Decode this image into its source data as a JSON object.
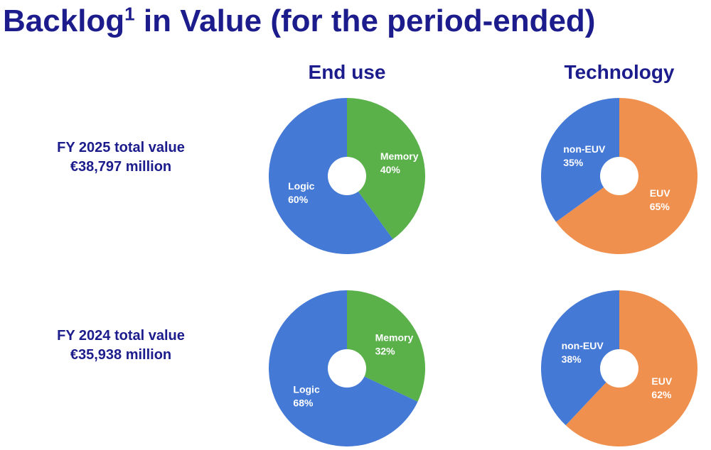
{
  "title": {
    "main": "Backlog",
    "superscript": "1",
    "rest": " in Value (for the period-ended)"
  },
  "column_headers": [
    "End use",
    "Technology"
  ],
  "rows": [
    {
      "period": "FY 2025 total value",
      "amount": "€38,797 million"
    },
    {
      "period": "FY 2024 total value",
      "amount": "€35,938 million"
    }
  ],
  "colors": {
    "logic": "#4479d6",
    "memory": "#5ab14a",
    "non_euv": "#4479d6",
    "euv": "#f0904e",
    "title": "#1c1c8c"
  },
  "chart_data": [
    {
      "type": "pie",
      "title": "End use",
      "period": "FY 2025",
      "slices": [
        {
          "label": "Memory",
          "value": 40,
          "display": "40%",
          "color": "#5ab14a"
        },
        {
          "label": "Logic",
          "value": 60,
          "display": "60%",
          "color": "#4479d6"
        }
      ]
    },
    {
      "type": "pie",
      "title": "Technology",
      "period": "FY 2025",
      "slices": [
        {
          "label": "EUV",
          "value": 65,
          "display": "65%",
          "color": "#f0904e"
        },
        {
          "label": "non-EUV",
          "value": 35,
          "display": "35%",
          "color": "#4479d6"
        }
      ]
    },
    {
      "type": "pie",
      "title": "End use",
      "period": "FY 2024",
      "slices": [
        {
          "label": "Memory",
          "value": 32,
          "display": "32%",
          "color": "#5ab14a"
        },
        {
          "label": "Logic",
          "value": 68,
          "display": "68%",
          "color": "#4479d6"
        }
      ]
    },
    {
      "type": "pie",
      "title": "Technology",
      "period": "FY 2024",
      "slices": [
        {
          "label": "EUV",
          "value": 62,
          "display": "62%",
          "color": "#f0904e"
        },
        {
          "label": "non-EUV",
          "value": 38,
          "display": "38%",
          "color": "#4479d6"
        }
      ]
    }
  ]
}
